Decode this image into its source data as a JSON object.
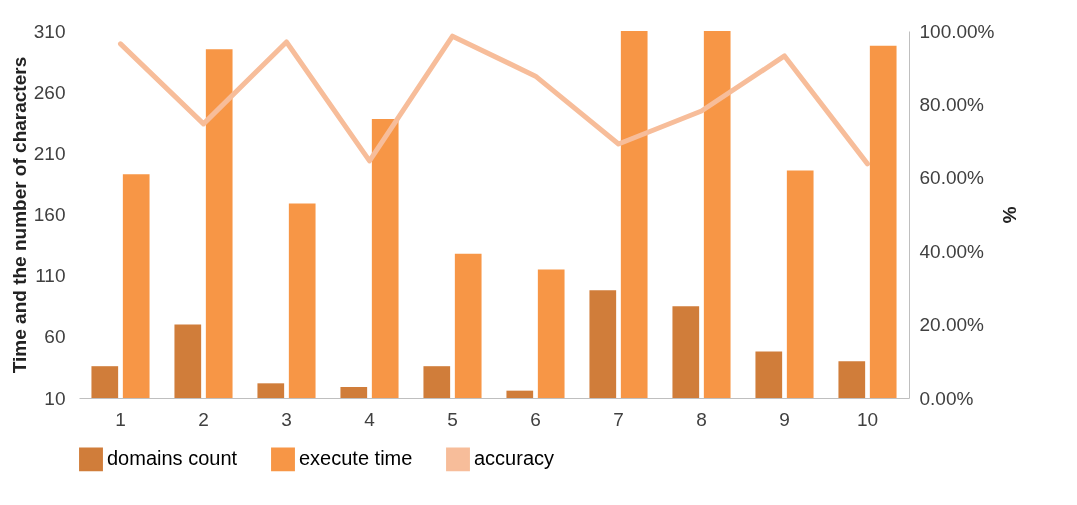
{
  "chart_data": {
    "type": "bar",
    "ylabel": "Time and the number of characters",
    "y2label": "%",
    "categories": [
      "1",
      "2",
      "3",
      "4",
      "5",
      "6",
      "7",
      "8",
      "9",
      "10"
    ],
    "series": [
      {
        "name": "domains count",
        "color": "#d07d3a",
        "values": [
          36,
          70,
          22,
          19,
          36,
          16,
          98,
          85,
          48,
          40
        ]
      },
      {
        "name": "execute time",
        "color": "#f79646",
        "values": [
          193,
          295,
          169,
          238,
          128,
          115,
          310,
          310,
          196,
          298
        ]
      },
      {
        "name": "accuracy",
        "type": "line",
        "axis": "y2",
        "color": "#f7bd9a",
        "values": [
          96.5,
          74.7,
          97,
          64.6,
          98.6,
          87.7,
          69.2,
          78.2,
          93.2,
          63.8
        ]
      }
    ],
    "ylim": [
      10,
      310
    ],
    "yticks": [
      10,
      60,
      110,
      160,
      210,
      260,
      310
    ],
    "y2lim": [
      0,
      100
    ],
    "y2ticks": [
      {
        "value": 0,
        "label": "0.00%"
      },
      {
        "value": 20,
        "label": "20.00%"
      },
      {
        "value": 40,
        "label": "40.00%"
      },
      {
        "value": 60,
        "label": "60.00%"
      },
      {
        "value": 80,
        "label": "80.00%"
      },
      {
        "value": 100,
        "label": "100.00%"
      }
    ],
    "legend": "bottom"
  }
}
